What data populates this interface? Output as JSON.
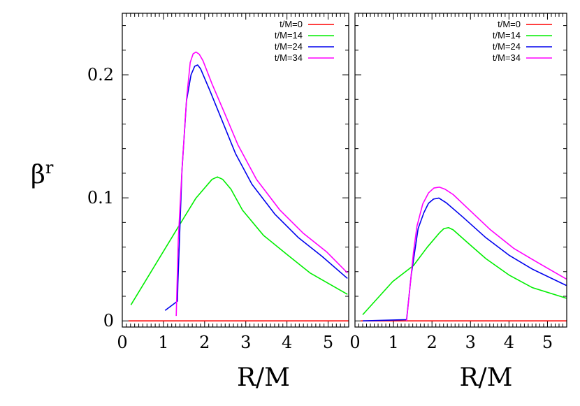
{
  "chart_data": [
    {
      "type": "line",
      "ylabel": "β",
      "ylabel_sup": "r",
      "xlabel": "R/M",
      "xlim": [
        0,
        5.5
      ],
      "ylim": [
        -0.005,
        0.25
      ],
      "xticks": [
        "0",
        "1",
        "2",
        "3",
        "4",
        "5"
      ],
      "yticks": [
        "0",
        "0.1",
        "0.2"
      ],
      "legend_position": "top-right",
      "grid": false,
      "series": [
        {
          "name": "t/M=0",
          "color": "#ff0000",
          "points": [
            [
              0.15,
              0
            ],
            [
              5.5,
              0
            ]
          ]
        },
        {
          "name": "t/M=14",
          "color": "#00ee00",
          "points": [
            [
              0.21,
              0.013
            ],
            [
              1.39,
              0.078
            ],
            [
              1.79,
              0.0998
            ],
            [
              2.18,
              0.115
            ],
            [
              2.31,
              0.117
            ],
            [
              2.44,
              0.115
            ],
            [
              2.64,
              0.107
            ],
            [
              2.92,
              0.09
            ],
            [
              3.43,
              0.0695
            ],
            [
              4.0,
              0.054
            ],
            [
              4.56,
              0.039
            ],
            [
              5.47,
              0.0216
            ]
          ]
        },
        {
          "name": "t/M=24",
          "color": "#0000ee",
          "points": [
            [
              1.04,
              0.0085
            ],
            [
              1.34,
              0.016
            ],
            [
              1.35,
              0.03
            ],
            [
              1.45,
              0.1225
            ],
            [
              1.56,
              0.179
            ],
            [
              1.67,
              0.2
            ],
            [
              1.76,
              0.207
            ],
            [
              1.83,
              0.208
            ],
            [
              1.9,
              0.205
            ],
            [
              2.13,
              0.187
            ],
            [
              2.41,
              0.164
            ],
            [
              2.75,
              0.136
            ],
            [
              3.15,
              0.111
            ],
            [
              3.71,
              0.0866
            ],
            [
              4.28,
              0.0676
            ],
            [
              4.85,
              0.0525
            ],
            [
              5.47,
              0.0345
            ]
          ]
        },
        {
          "name": "t/M=34",
          "color": "#ff00ff",
          "points": [
            [
              1.31,
              0.004
            ],
            [
              1.36,
              0.066
            ],
            [
              1.45,
              0.1225
            ],
            [
              1.56,
              0.18
            ],
            [
              1.65,
              0.21
            ],
            [
              1.72,
              0.217
            ],
            [
              1.79,
              0.2185
            ],
            [
              1.87,
              0.2167
            ],
            [
              1.96,
              0.2115
            ],
            [
              2.18,
              0.1926
            ],
            [
              2.47,
              0.17
            ],
            [
              2.81,
              0.143
            ],
            [
              3.26,
              0.115
            ],
            [
              3.83,
              0.09
            ],
            [
              4.39,
              0.0714
            ],
            [
              4.96,
              0.0562
            ],
            [
              5.47,
              0.039
            ]
          ]
        }
      ]
    },
    {
      "type": "line",
      "xlabel": "R/M",
      "xlim": [
        0,
        5.5
      ],
      "ylim": [
        -0.005,
        0.25
      ],
      "xticks": [
        "0",
        "1",
        "2",
        "3",
        "4",
        "5"
      ],
      "legend_position": "top-right",
      "grid": false,
      "series": [
        {
          "name": "t/M=0",
          "color": "#ff0000",
          "points": [
            [
              0.15,
              0
            ],
            [
              5.5,
              0
            ]
          ]
        },
        {
          "name": "t/M=14",
          "color": "#00ee00",
          "points": [
            [
              0.2,
              0.005
            ],
            [
              0.98,
              0.032
            ],
            [
              1.52,
              0.045
            ],
            [
              1.88,
              0.06
            ],
            [
              2.19,
              0.0714
            ],
            [
              2.31,
              0.075
            ],
            [
              2.43,
              0.0758
            ],
            [
              2.55,
              0.074
            ],
            [
              2.91,
              0.064
            ],
            [
              3.4,
              0.0506
            ],
            [
              4.0,
              0.0373
            ],
            [
              4.61,
              0.027
            ],
            [
              5.49,
              0.0184
            ]
          ]
        },
        {
          "name": "t/M=24",
          "color": "#0000ee",
          "points": [
            [
              0.2,
              0
            ],
            [
              1.34,
              0.001
            ],
            [
              1.46,
              0.037
            ],
            [
              1.64,
              0.075
            ],
            [
              1.79,
              0.088
            ],
            [
              1.91,
              0.0956
            ],
            [
              2.04,
              0.099
            ],
            [
              2.18,
              0.0998
            ],
            [
              2.37,
              0.096
            ],
            [
              2.79,
              0.0847
            ],
            [
              3.4,
              0.0676
            ],
            [
              4.0,
              0.0534
            ],
            [
              4.61,
              0.042
            ],
            [
              5.49,
              0.0288
            ]
          ]
        },
        {
          "name": "t/M=34",
          "color": "#ff00ff",
          "points": [
            [
              1.34,
              0
            ],
            [
              1.52,
              0.056
            ],
            [
              1.61,
              0.077
            ],
            [
              1.76,
              0.095
            ],
            [
              1.91,
              0.104
            ],
            [
              2.05,
              0.108
            ],
            [
              2.19,
              0.1087
            ],
            [
              2.34,
              0.107
            ],
            [
              2.55,
              0.1027
            ],
            [
              2.91,
              0.092
            ],
            [
              3.52,
              0.074
            ],
            [
              4.12,
              0.059
            ],
            [
              4.73,
              0.0477
            ],
            [
              5.49,
              0.034
            ]
          ]
        }
      ]
    }
  ]
}
